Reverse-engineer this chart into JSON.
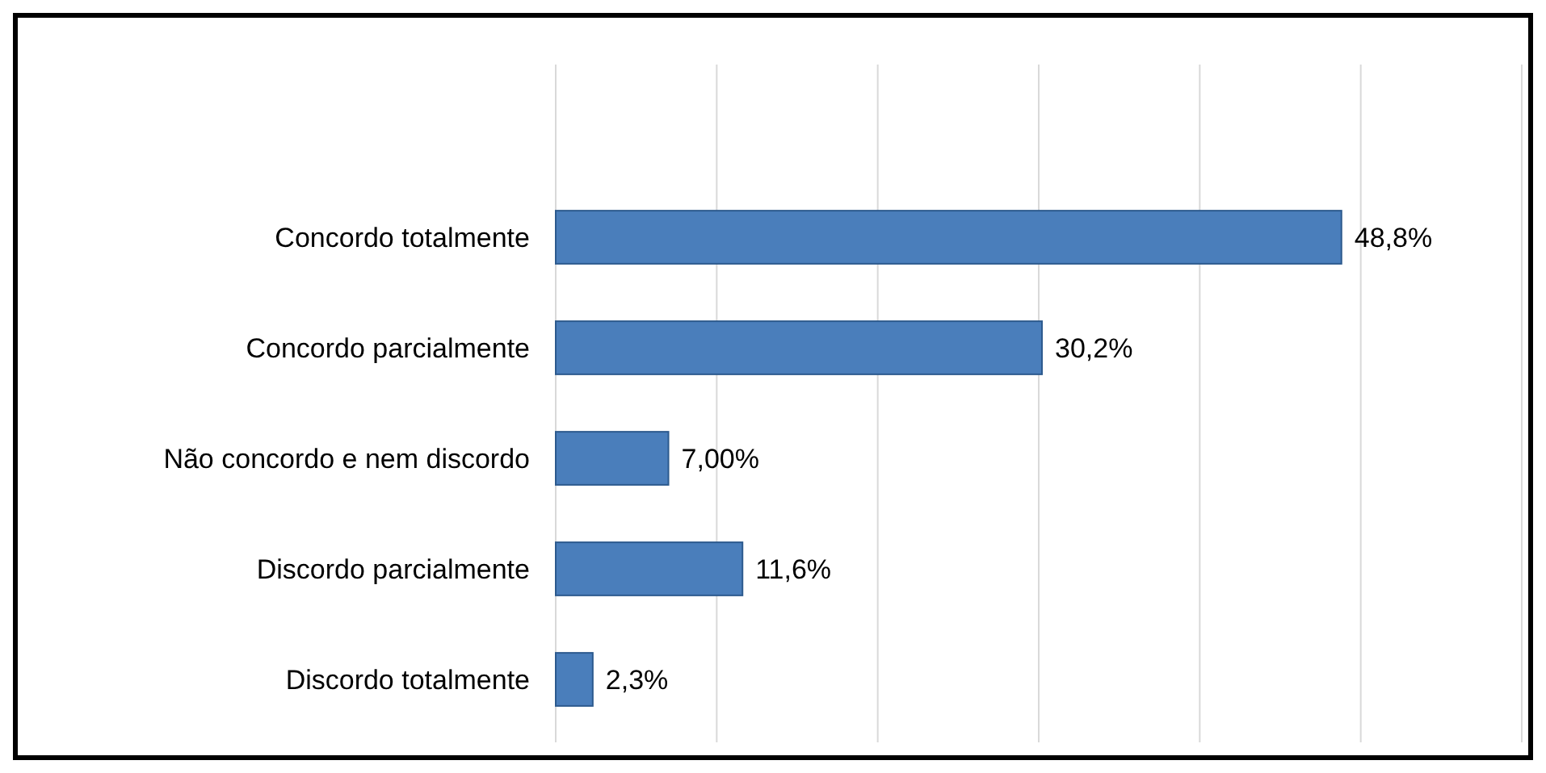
{
  "chart_data": {
    "type": "bar",
    "orientation": "horizontal",
    "categories": [
      "Concordo totalmente",
      "Concordo parcialmente",
      "Não concordo e nem discordo",
      "Discordo parcialmente",
      "Discordo totalmente"
    ],
    "values": [
      48.8,
      30.2,
      7.0,
      11.6,
      2.3
    ],
    "value_labels": [
      "48,8%",
      "30,2%",
      "7,00%",
      "11,6%",
      "2,3%"
    ],
    "color": "#4a7ebb",
    "xlim": [
      0,
      60
    ],
    "xticks": [
      {
        "value": 0,
        "label": null
      },
      {
        "value": 10,
        "label": null
      },
      {
        "value": 20,
        "label": null
      },
      {
        "value": 30,
        "label": null
      },
      {
        "value": 40,
        "label": null
      },
      {
        "value": 50,
        "label": null
      },
      {
        "value": 60,
        "label": null
      }
    ],
    "grid": "x",
    "tick_labels": "y"
  }
}
